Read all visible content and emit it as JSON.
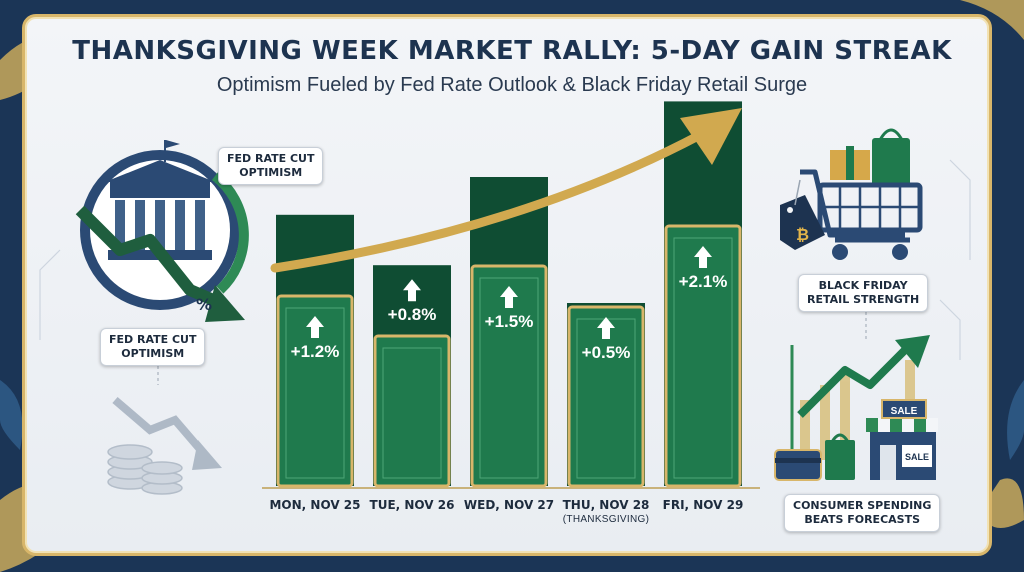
{
  "title": "THANKSGIVING WEEK MARKET RALLY: 5-DAY GAIN STREAK",
  "subtitle": "Optimism Fueled by Fed Rate Outlook & Black Friday Retail Surge",
  "callouts": {
    "fed_top": "FED RATE CUT\nOPTIMISM",
    "fed_bottom": "FED RATE CUT\nOPTIMISM",
    "black_friday": "BLACK FRIDAY\nRETAIL STRENGTH",
    "consumer": "CONSUMER SPENDING\nBEATS FORECASTS"
  },
  "icons": {
    "building": "federal-reserve-building-icon",
    "cart": "shopping-cart-icon",
    "store": "storefront-icon",
    "coins": "coin-stack-icon",
    "sale_sign_1": "SALE",
    "sale_sign_2": "SALE",
    "percent": "%",
    "bitcoin": "₿"
  },
  "colors": {
    "bar_green": "#1f7a4d",
    "bar_dark": "#0f4d33",
    "gold": "#d8b66a",
    "navy": "#1d3350"
  },
  "chart_data": {
    "type": "bar",
    "title": "THANKSGIVING WEEK MARKET RALLY: 5-DAY GAIN STREAK",
    "subtitle": "Optimism Fueled by Fed Rate Outlook & Black Friday Retail Surge",
    "categories": [
      "MON, NOV 25",
      "TUE, NOV 26",
      "WED, NOV 27",
      "THU, NOV 28",
      "FRI, NOV 29"
    ],
    "category_notes": [
      "",
      "",
      "",
      "(THANKSGIVING)",
      ""
    ],
    "values": [
      1.2,
      0.8,
      1.5,
      0.5,
      2.1
    ],
    "value_labels": [
      "+1.2%",
      "+0.8%",
      "+1.5%",
      "+0.5%",
      "+2.1%"
    ],
    "direction": [
      "up",
      "up",
      "up",
      "up",
      "up"
    ],
    "grid": false,
    "legend": "none"
  }
}
